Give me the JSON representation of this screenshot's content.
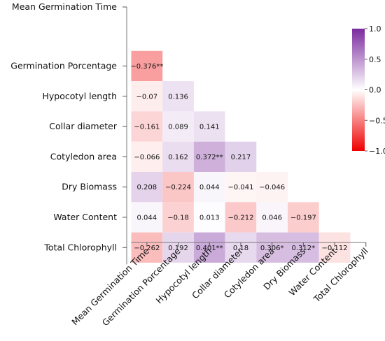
{
  "chart_data": {
    "type": "heatmap",
    "title": "",
    "variables": [
      "Mean Germination Time",
      "Germination Porcentage",
      "Hypocotyl length",
      "Collar diameter",
      "Cotyledon area",
      "Dry Biomass",
      "Water Content",
      "Total Chlorophyll"
    ],
    "cells": [
      {
        "row": 1,
        "col": 0,
        "value": -0.376,
        "label": "−0.376**"
      },
      {
        "row": 2,
        "col": 0,
        "value": -0.07,
        "label": "−0.07"
      },
      {
        "row": 2,
        "col": 1,
        "value": 0.136,
        "label": "0.136"
      },
      {
        "row": 3,
        "col": 0,
        "value": -0.161,
        "label": "−0.161"
      },
      {
        "row": 3,
        "col": 1,
        "value": 0.089,
        "label": "0.089"
      },
      {
        "row": 3,
        "col": 2,
        "value": 0.141,
        "label": "0.141"
      },
      {
        "row": 4,
        "col": 0,
        "value": -0.066,
        "label": "−0.066"
      },
      {
        "row": 4,
        "col": 1,
        "value": 0.162,
        "label": "0.162"
      },
      {
        "row": 4,
        "col": 2,
        "value": 0.372,
        "label": "0.372**"
      },
      {
        "row": 4,
        "col": 3,
        "value": 0.217,
        "label": "0.217"
      },
      {
        "row": 5,
        "col": 0,
        "value": 0.208,
        "label": "0.208"
      },
      {
        "row": 5,
        "col": 1,
        "value": -0.224,
        "label": "−0.224"
      },
      {
        "row": 5,
        "col": 2,
        "value": 0.044,
        "label": "0.044"
      },
      {
        "row": 5,
        "col": 3,
        "value": -0.041,
        "label": "−0.041"
      },
      {
        "row": 5,
        "col": 4,
        "value": -0.046,
        "label": "−0.046"
      },
      {
        "row": 6,
        "col": 0,
        "value": 0.044,
        "label": "0.044"
      },
      {
        "row": 6,
        "col": 1,
        "value": -0.18,
        "label": "−0.18"
      },
      {
        "row": 6,
        "col": 2,
        "value": 0.013,
        "label": "0.013"
      },
      {
        "row": 6,
        "col": 3,
        "value": -0.212,
        "label": "−0.212"
      },
      {
        "row": 6,
        "col": 4,
        "value": 0.046,
        "label": "0.046"
      },
      {
        "row": 6,
        "col": 5,
        "value": -0.197,
        "label": "−0.197"
      },
      {
        "row": 7,
        "col": 0,
        "value": -0.262,
        "label": "−0.262"
      },
      {
        "row": 7,
        "col": 1,
        "value": 0.192,
        "label": "0.192"
      },
      {
        "row": 7,
        "col": 2,
        "value": 0.401,
        "label": "0.401**"
      },
      {
        "row": 7,
        "col": 3,
        "value": 0.18,
        "label": "0.18"
      },
      {
        "row": 7,
        "col": 4,
        "value": 0.306,
        "label": "0.306*"
      },
      {
        "row": 7,
        "col": 5,
        "value": 0.312,
        "label": "0.312*"
      },
      {
        "row": 7,
        "col": 6,
        "value": -0.112,
        "label": "−0.112"
      }
    ],
    "colorbar": {
      "min": -1,
      "max": 1,
      "ticks": [
        1.0,
        0.5,
        0.0,
        -0.5,
        -1.0
      ],
      "tick_labels": [
        "1.0",
        "0.5",
        "0.0",
        "−0.5",
        "−1.0"
      ],
      "colors": {
        "negative": "#ee0000",
        "zero": "#ffffff",
        "positive": "#7b2b9e"
      },
      "position": "right"
    }
  }
}
